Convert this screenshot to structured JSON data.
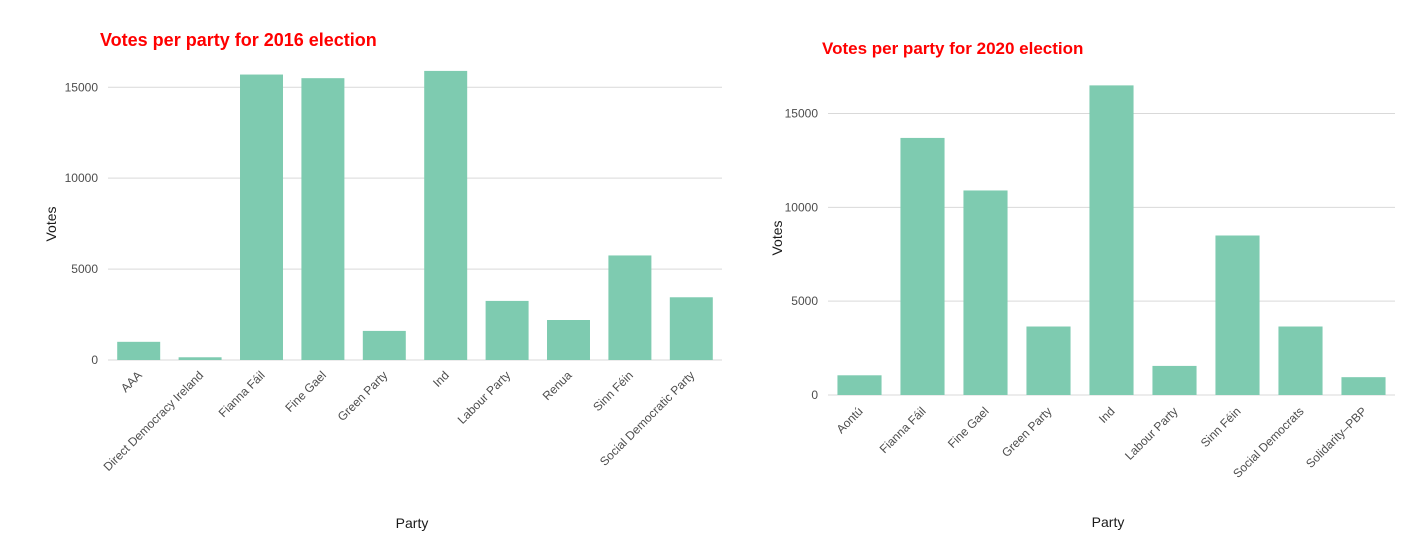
{
  "bar_color": "#7ecbb0",
  "title_color": "#ff0000",
  "chart_data": [
    {
      "type": "bar",
      "title": "Votes per party for 2016 election",
      "xlabel": "Party",
      "ylabel": "Votes",
      "ylim": [
        0,
        16500
      ],
      "yticks": [
        0,
        5000,
        10000,
        15000
      ],
      "grid": true,
      "categories": [
        "AAA",
        "Direct Democracy Ireland",
        "Fianna Fáil",
        "Fine Gael",
        "Green Party",
        "Ind",
        "Labour Party",
        "Renua",
        "Sinn Féin",
        "Social Democratic Party"
      ],
      "values": [
        1000,
        150,
        15700,
        15500,
        1600,
        15900,
        3250,
        2200,
        5750,
        3450
      ]
    },
    {
      "type": "bar",
      "title": "Votes per party for 2020 election",
      "xlabel": "Party",
      "ylabel": "Votes",
      "ylim": [
        0,
        17000
      ],
      "yticks": [
        0,
        5000,
        10000,
        15000
      ],
      "grid": true,
      "categories": [
        "Aontú",
        "Fianna Fáil",
        "Fine Gael",
        "Green Party",
        "Ind",
        "Labour Party",
        "Sinn Féin",
        "Social Democrats",
        "Solidarity–PBP"
      ],
      "values": [
        1050,
        13700,
        10900,
        3650,
        16500,
        1550,
        8500,
        3650,
        950
      ]
    }
  ]
}
